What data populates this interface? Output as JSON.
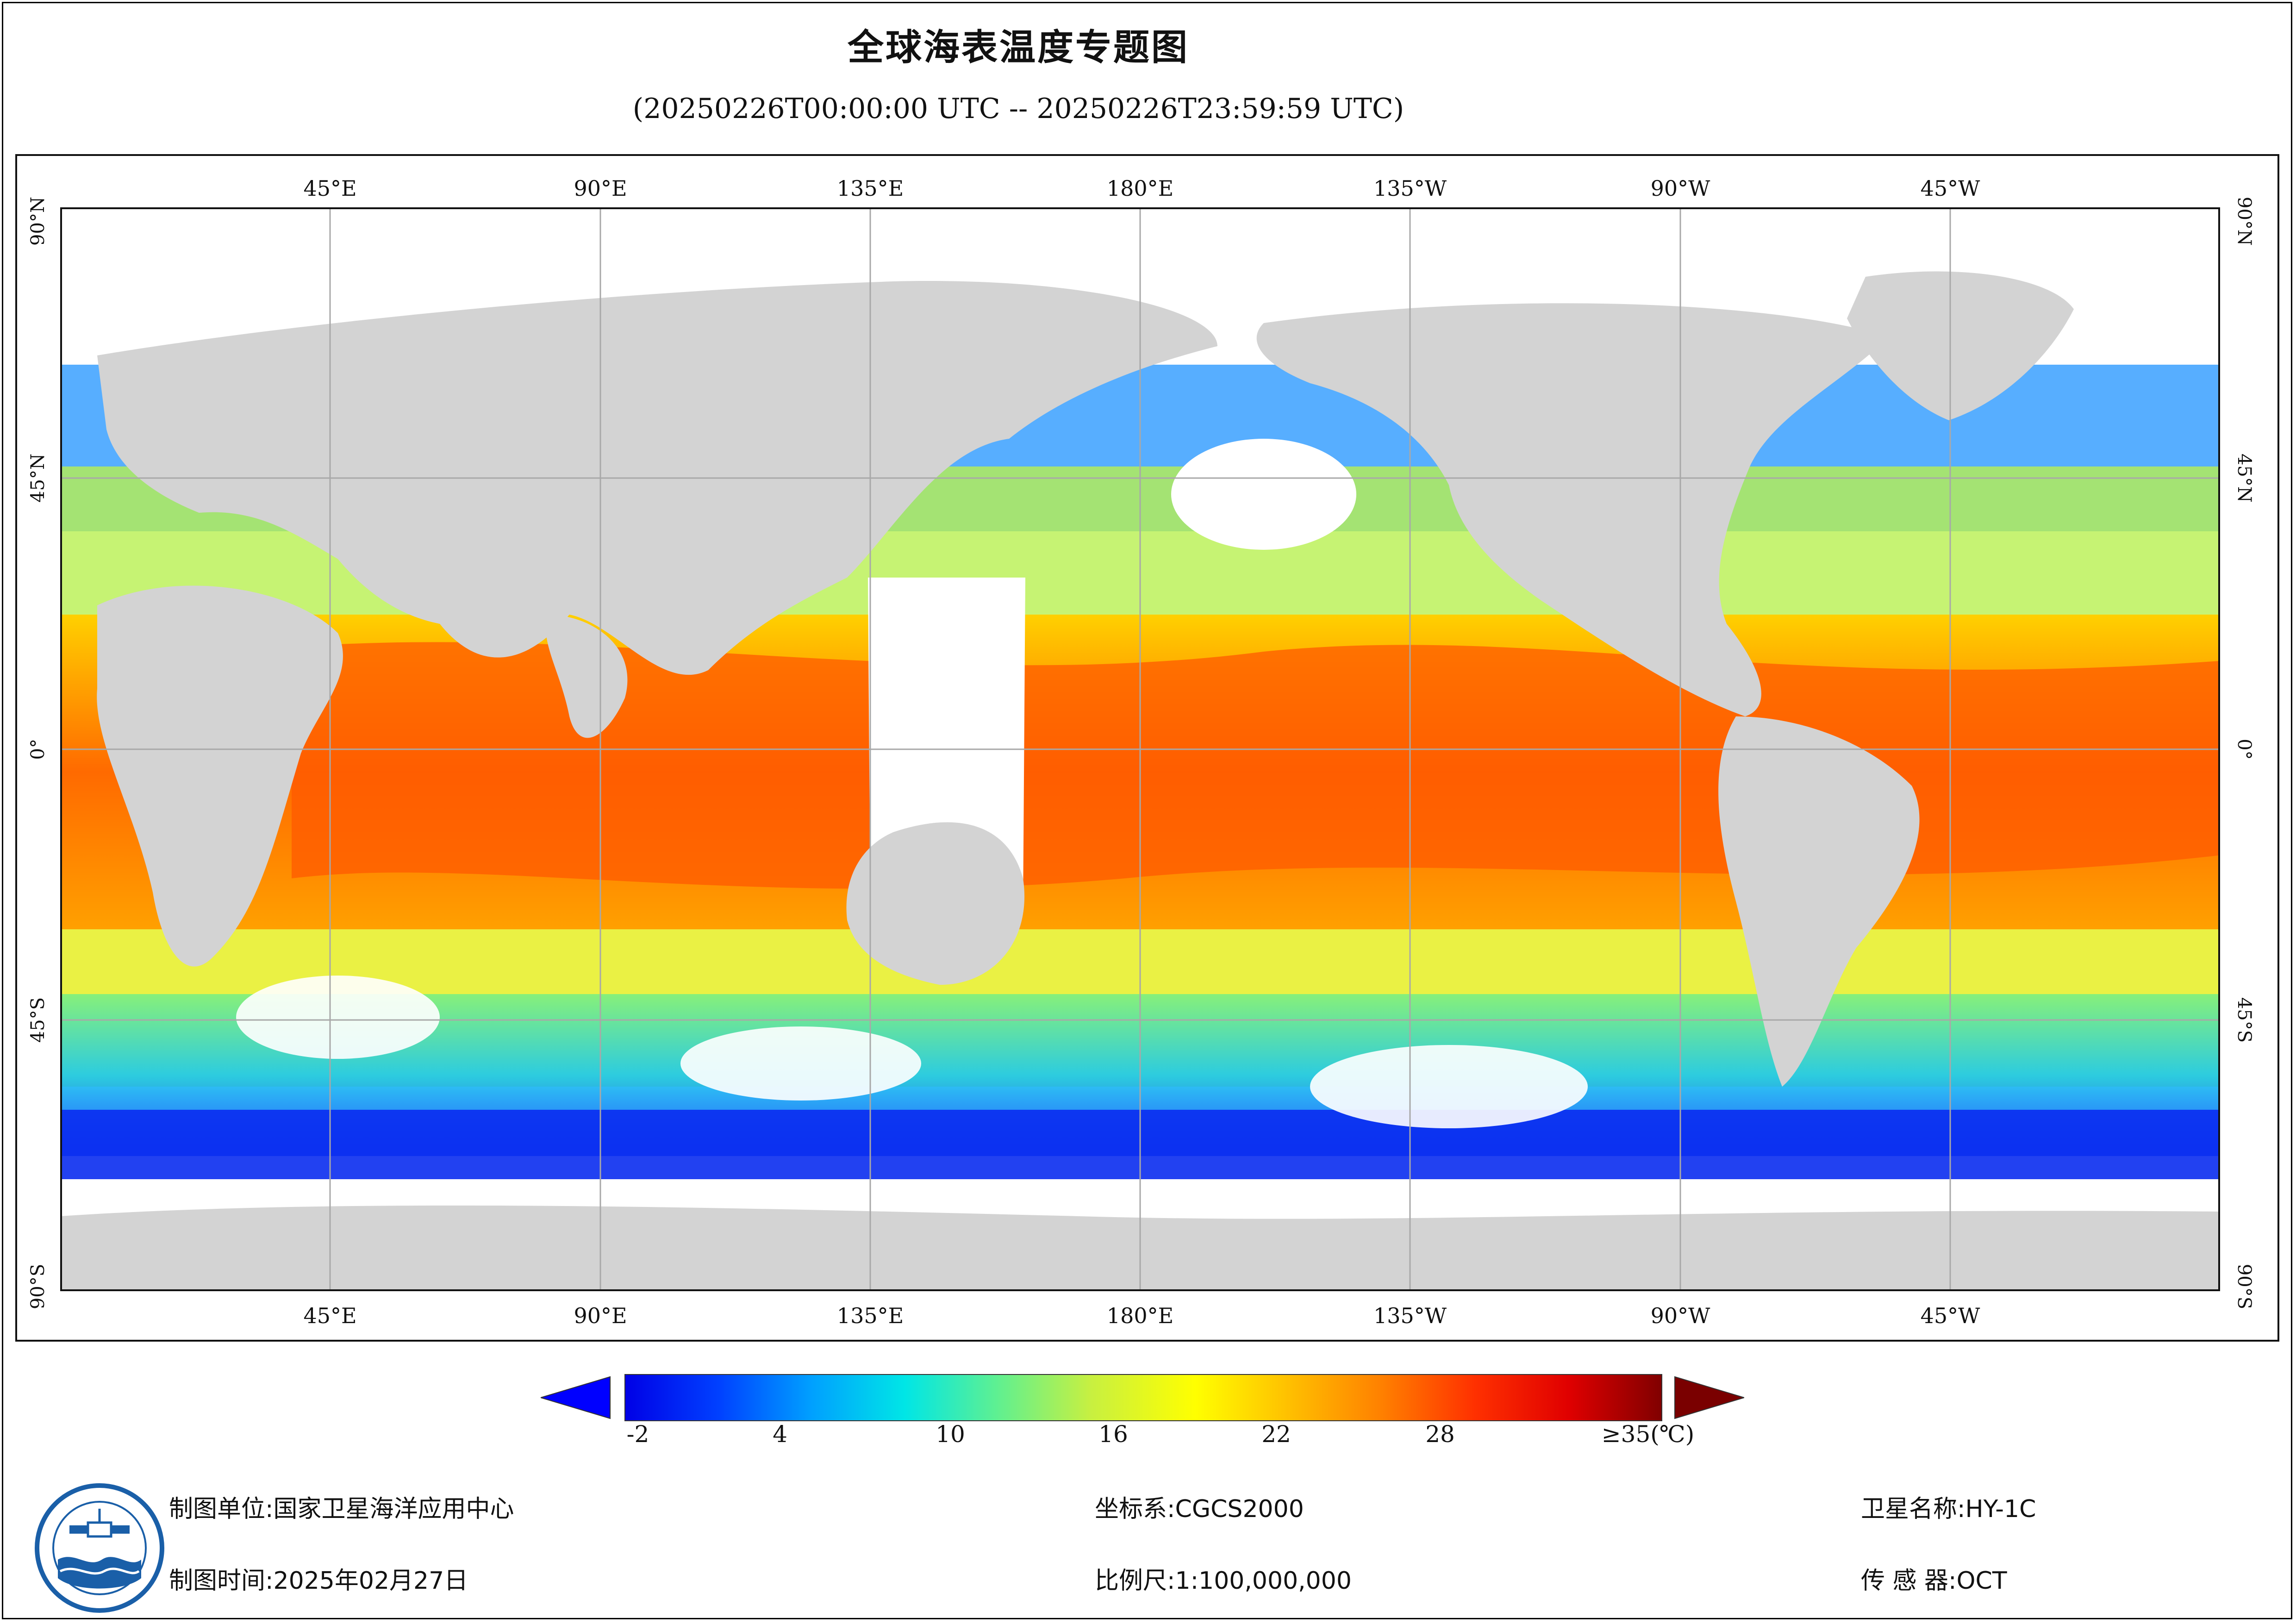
{
  "header": {
    "title": "全球海表温度专题图",
    "subtitle": "(20250226T00:00:00 UTC -- 20250226T23:59:59 UTC)"
  },
  "map": {
    "top_lon_labels": [
      "45°E",
      "90°E",
      "135°E",
      "180°E",
      "135°W",
      "90°W",
      "45°W"
    ],
    "bottom_lon_labels": [
      "45°E",
      "90°E",
      "135°E",
      "180°E",
      "135°W",
      "90°W",
      "45°W"
    ],
    "left_lat_labels": [
      "90°N",
      "45°N",
      "0°",
      "45°S",
      "90°S"
    ],
    "right_lat_labels": [
      "90°N",
      "45°N",
      "0°",
      "45°S",
      "90°S"
    ],
    "colors": {
      "land": "#d3d3d3",
      "nodata": "#ffffff",
      "grid": "#a8a8a8"
    }
  },
  "colorbar": {
    "ticks": [
      "-2",
      "4",
      "10",
      "16",
      "22",
      "28",
      "≥35(℃)"
    ],
    "stops": [
      "#0000e6",
      "#0040ff",
      "#00a0ff",
      "#00e6e6",
      "#60f090",
      "#c8f040",
      "#ffff00",
      "#ffc000",
      "#ff8000",
      "#ff3000",
      "#e00000",
      "#800000"
    ],
    "under_color": "#0000ff",
    "over_color": "#7a0000"
  },
  "footer": {
    "unit_label": "制图单位:国家卫星海洋应用中心",
    "time_label": "制图时间:2025年02月27日",
    "crs_label": "坐标系:CGCS2000",
    "scale_label": "比例尺:1:100,000,000",
    "satellite_label": "卫星名称:HY-1C",
    "sensor_label": "传 感 器:OCT"
  }
}
